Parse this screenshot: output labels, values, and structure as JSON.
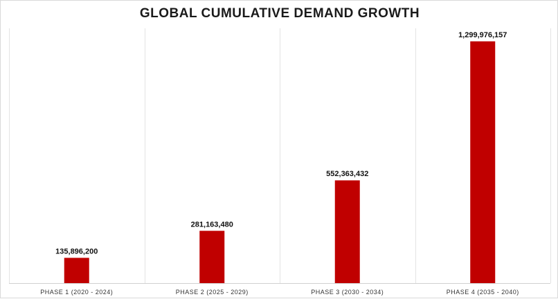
{
  "chart_data": {
    "type": "bar",
    "title": "GLOBAL CUMULATIVE DEMAND GROWTH",
    "categories": [
      "PHASE 1 (2020 - 2024)",
      "PHASE 2 (2025 - 2029)",
      "PHASE 3 (2030 - 2034)",
      "PHASE 4 (2035 - 2040)"
    ],
    "values": [
      135896200,
      281163480,
      552363432,
      1299976157
    ],
    "data_labels": [
      "135,896,200",
      "281,163,480",
      "552,363,432",
      "1,299,976,157"
    ],
    "xlabel": "",
    "ylabel": "",
    "ylim": [
      0,
      1370000000
    ],
    "bar_color": "#c00000",
    "grid": "vertical category separators",
    "legend": "none"
  }
}
